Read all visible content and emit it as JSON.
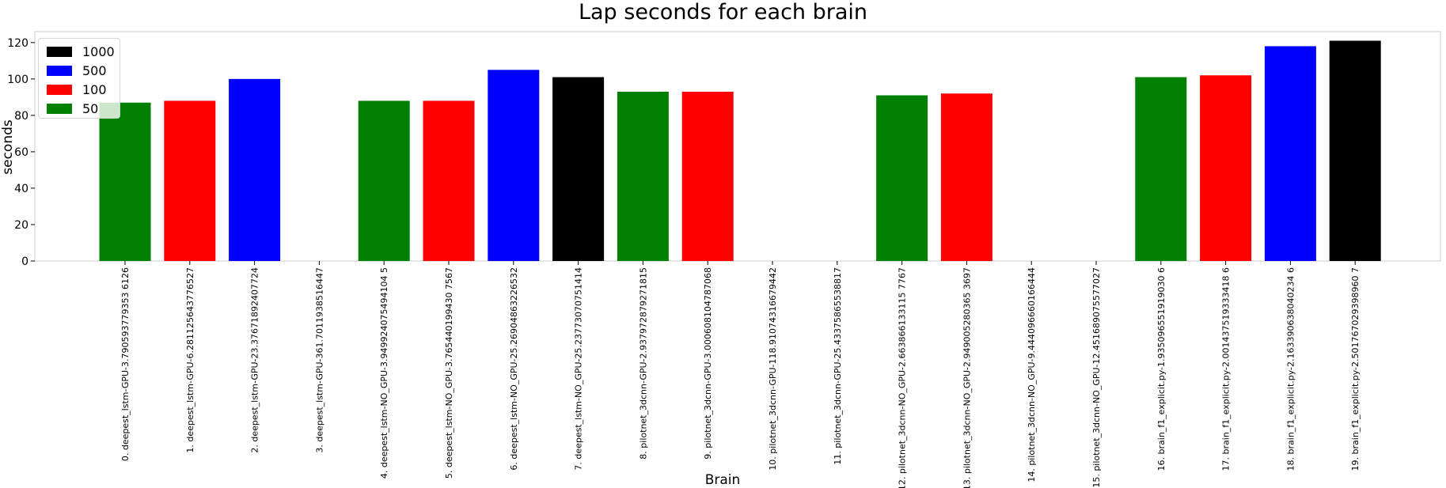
{
  "chart_data": {
    "type": "bar",
    "title": "Lap seconds for each brain",
    "xlabel": "Brain",
    "ylabel": "seconds",
    "ylim": [
      0,
      126
    ],
    "yticks": [
      0,
      20,
      40,
      60,
      80,
      100,
      120
    ],
    "grid": false,
    "legend_position": "top-left",
    "legend": [
      {
        "label": "1000",
        "color": "#000000"
      },
      {
        "label": "500",
        "color": "#0000ff"
      },
      {
        "label": "100",
        "color": "#ff0000"
      },
      {
        "label": "50",
        "color": "#008000"
      }
    ],
    "categories": [
      "0. deepest_lstm-GPU-3.790593779353 6126",
      "1. deepest_lstm-GPU-6.281125643776527",
      "2. deepest_lstm-GPU-23.37671892407724",
      "3. deepest_lstm-GPU-361.7011938516447",
      "4. deepest_lstm-NO_GPU-3.949924075494104 5",
      "5. deepest_lstm-NO_GPU-3.765440199430 7567",
      "6. deepest_lstm-NO_GPU-25.26904863226532",
      "7. deepest_lstm-NO_GPU-25.23773070751414",
      "8. pilotnet_3dcnn-GPU-2.937972879271815",
      "9. pilotnet_3dcnn-GPU-3.000608104787068",
      "10. pilotnet_3dcnn-GPU-118.91074316679442",
      "11. pilotnet_3dcnn-GPU-25.43375865538817",
      "12. pilotnet_3dcnn-NO_GPU-2.663866133115 7767",
      "13. pilotnet_3dcnn-NO_GPU-2.949005280365 3697",
      "14. pilotnet_3dcnn-NO_GPU-9.444096660166444",
      "15. pilotnet_3dcnn-NO_GPU-12.451689075577027",
      "16. brain_f1_explicit.py-1.935096551919030 6",
      "17. brain_f1_explicit.py-2.001437519333418 6",
      "18. brain_f1_explicit.py-2.163390638040234 6",
      "19. brain_f1_explicit.py-2.501767029398960 7"
    ],
    "values": [
      87,
      88,
      100,
      0,
      88,
      88,
      105,
      101,
      93,
      93,
      0,
      0,
      91,
      92,
      0,
      0,
      101,
      102,
      118,
      121
    ],
    "bar_colors": [
      "#008000",
      "#ff0000",
      "#0000ff",
      "#008000",
      "#008000",
      "#ff0000",
      "#0000ff",
      "#000000",
      "#008000",
      "#ff0000",
      "#008000",
      "#008000",
      "#008000",
      "#ff0000",
      "#008000",
      "#008000",
      "#008000",
      "#ff0000",
      "#0000ff",
      "#000000"
    ]
  }
}
